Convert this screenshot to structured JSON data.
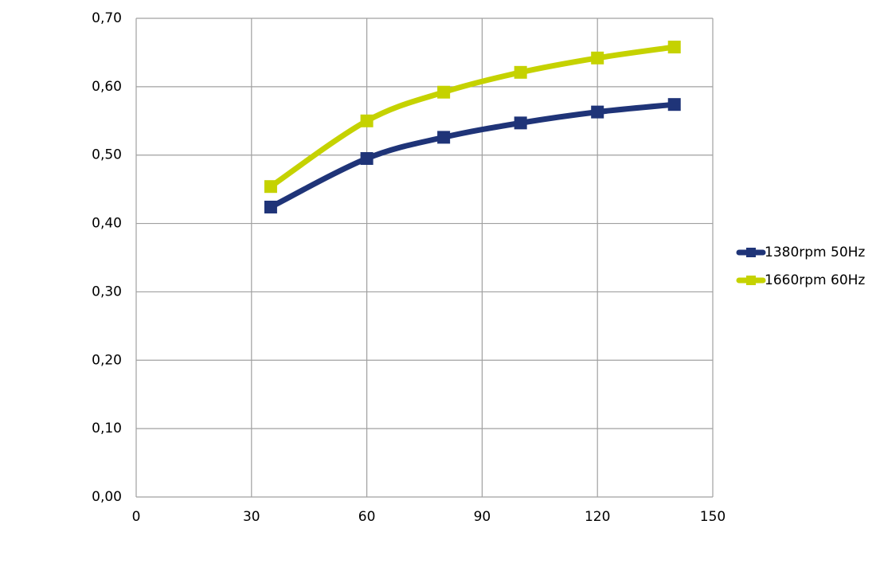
{
  "chart_data": {
    "type": "line",
    "x": [
      35,
      60,
      80,
      100,
      120,
      140
    ],
    "series": [
      {
        "name": "1380rpm 50Hz",
        "color": "#1f3478",
        "values": [
          0.424,
          0.495,
          0.526,
          0.547,
          0.563,
          0.574
        ]
      },
      {
        "name": "1660rpm 60Hz",
        "color": "#c5d200",
        "values": [
          0.454,
          0.55,
          0.592,
          0.621,
          0.642,
          0.658
        ]
      }
    ],
    "xlim": [
      0,
      150
    ],
    "xticks": [
      0,
      30,
      60,
      90,
      120,
      150
    ],
    "ylim": [
      0,
      0.7
    ],
    "yticks": [
      {
        "value": 0,
        "label": "0,00"
      },
      {
        "value": 0.1,
        "label": "0,10"
      },
      {
        "value": 0.2,
        "label": "0,20"
      },
      {
        "value": 0.3,
        "label": "0,30"
      },
      {
        "value": 0.4,
        "label": "0,40"
      },
      {
        "value": 0.5,
        "label": "0,50"
      },
      {
        "value": 0.6,
        "label": "0,60"
      },
      {
        "value": 0.7,
        "label": "0,70"
      }
    ],
    "grid": true,
    "legend": "right",
    "smooth": true
  }
}
